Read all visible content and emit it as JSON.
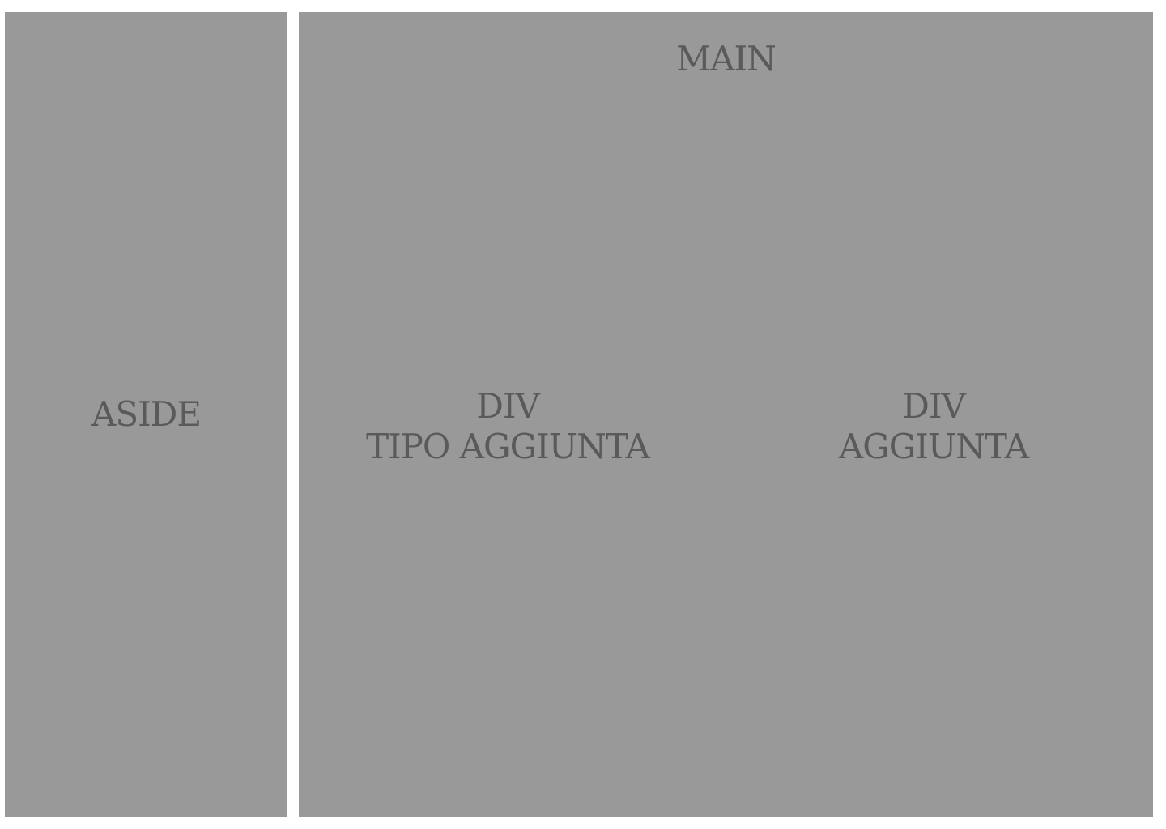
{
  "aside": {
    "label": "ASIDE"
  },
  "main": {
    "title": "MAIN",
    "blocks": [
      {
        "line1": "DIV",
        "line2": "TIPO AGGIUNTA"
      },
      {
        "line1": "DIV",
        "line2": "AGGIUNTA"
      }
    ]
  },
  "colors": {
    "panel_background": "#999999",
    "text": "#5a5a5a",
    "page_background": "#ffffff"
  }
}
